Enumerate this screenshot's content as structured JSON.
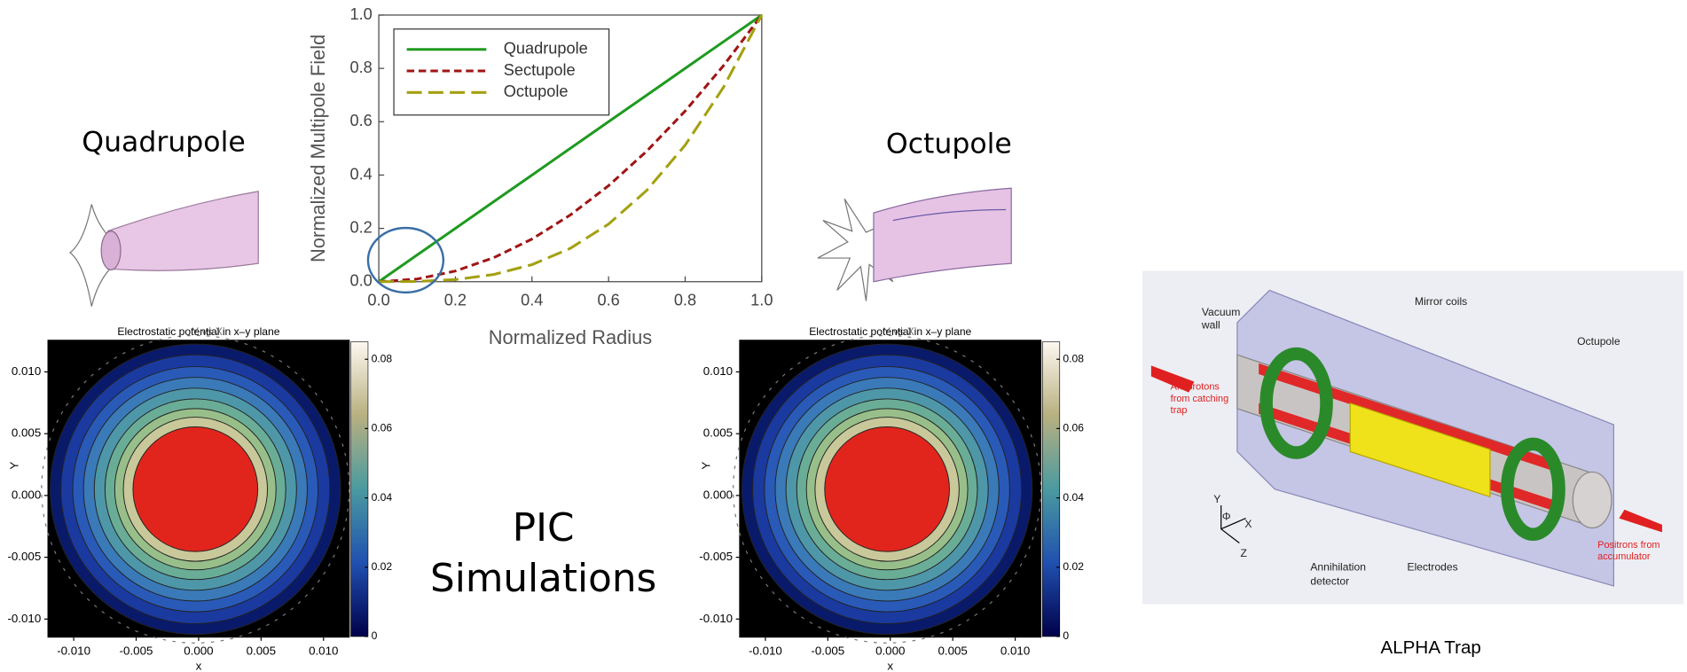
{
  "chart_data": [
    {
      "type": "line",
      "ylabel": "Normalized Multipole Field",
      "xlabel": "Normalized Radius",
      "x": [
        0,
        0.1,
        0.2,
        0.3,
        0.4,
        0.5,
        0.6,
        0.7,
        0.8,
        0.9,
        1.0
      ],
      "series": [
        {
          "name": "Quadrupole",
          "color": "#1f9a1f",
          "dash": "solid",
          "values": [
            0,
            0.1,
            0.2,
            0.3,
            0.4,
            0.5,
            0.6,
            0.7,
            0.8,
            0.9,
            1.0
          ]
        },
        {
          "name": "Sectupole",
          "color": "#a01515",
          "dash": "short",
          "values": [
            0,
            0.01,
            0.04,
            0.09,
            0.16,
            0.25,
            0.36,
            0.49,
            0.64,
            0.81,
            1.0
          ]
        },
        {
          "name": "Octupole",
          "color": "#a3a010",
          "dash": "long",
          "values": [
            0,
            0.001,
            0.008,
            0.027,
            0.064,
            0.125,
            0.216,
            0.343,
            0.512,
            0.729,
            1.0
          ]
        }
      ],
      "xlim": [
        0,
        1
      ],
      "ylim": [
        0,
        1
      ],
      "xticks": [
        {
          "value": 0,
          "label": "0.0"
        },
        0.2,
        0.4,
        0.6,
        0.8,
        {
          "value": 1,
          "label": "1.0"
        }
      ],
      "yticks": [
        {
          "value": 0,
          "label": "0.0"
        },
        0.2,
        0.4,
        0.6,
        0.8,
        {
          "value": 1,
          "label": "1.0"
        }
      ]
    },
    {
      "type": "contour",
      "title": "Electrostatic potential in x–y plane",
      "overlay_title": "Y vs X",
      "xlabel": "x",
      "ylabel": "Y",
      "xlim": [
        -0.0121,
        0.0121
      ],
      "ylim": [
        -0.0115,
        0.0126
      ],
      "clim": [
        0,
        0.085
      ],
      "xticks": [
        {
          "value": -0.01,
          "label": "-0.010"
        },
        {
          "value": -0.005,
          "label": "-0.005"
        },
        {
          "value": 0,
          "label": "0.000"
        },
        {
          "value": 0.005,
          "label": "0.005"
        },
        {
          "value": 0.01,
          "label": "0.010"
        }
      ],
      "yticks": [
        {
          "value": -0.01,
          "label": "-0.010"
        },
        {
          "value": -0.005,
          "label": "-0.005"
        },
        {
          "value": 0,
          "label": "0.000"
        },
        {
          "value": 0.005,
          "label": "0.005"
        },
        {
          "value": 0.01,
          "label": "0.010"
        }
      ],
      "cticks": [
        0,
        0.02,
        0.04,
        0.06,
        0.08
      ]
    },
    {
      "type": "contour",
      "title": "Electrostatic potential in x–y plane",
      "overlay_title": "Y vs X",
      "xlabel": "x",
      "ylabel": "Y",
      "xlim": [
        -0.0121,
        0.0121
      ],
      "ylim": [
        -0.0115,
        0.0126
      ],
      "clim": [
        0,
        0.085
      ],
      "xticks": [
        {
          "value": -0.01,
          "label": "-0.010"
        },
        {
          "value": -0.005,
          "label": "-0.005"
        },
        {
          "value": 0,
          "label": "0.000"
        },
        {
          "value": 0.005,
          "label": "0.005"
        },
        {
          "value": 0.01,
          "label": "0.010"
        }
      ],
      "yticks": [
        {
          "value": -0.01,
          "label": "-0.010"
        },
        {
          "value": -0.005,
          "label": "-0.005"
        },
        {
          "value": 0,
          "label": "0.000"
        },
        {
          "value": 0.005,
          "label": "0.005"
        },
        {
          "value": 0.01,
          "label": "0.010"
        }
      ],
      "cticks": [
        0,
        0.02,
        0.04,
        0.06,
        0.08
      ]
    }
  ],
  "labels": {
    "quadrupole": "Quadrupole",
    "octupole": "Octupole",
    "pic": [
      "PIC",
      "Simulations"
    ],
    "alpha": "ALPHA Trap"
  },
  "diagram": {
    "vacuum_wall": [
      "Vacuum",
      "wall"
    ],
    "mirror_coils": "Mirror coils",
    "octupole": "Octupole",
    "antiprotons": [
      "Antiprotons",
      "from catching",
      "trap"
    ],
    "positrons": [
      "Positrons from",
      "accumulator"
    ],
    "annihilation": [
      "Annihilation",
      "detector"
    ],
    "electrodes": "Electrodes",
    "axes": [
      "Y",
      "Φ",
      "X",
      "Z"
    ]
  }
}
